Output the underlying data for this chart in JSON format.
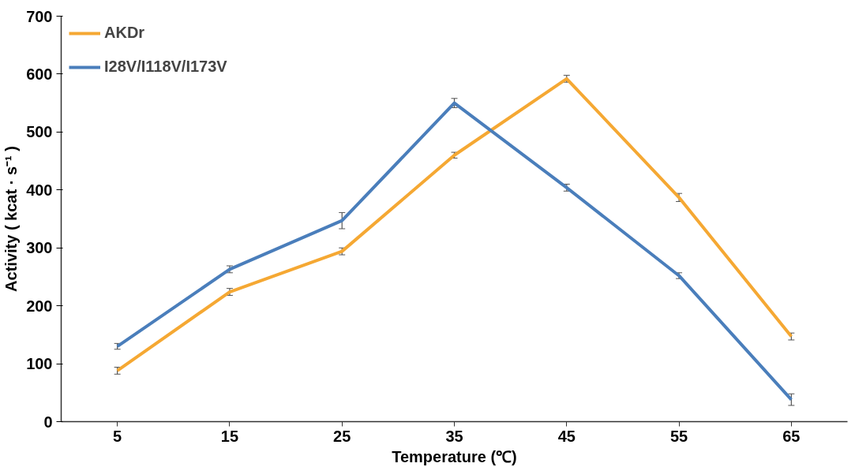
{
  "chart_data": {
    "type": "line",
    "xlabel": "Temperature (℃)",
    "ylabel": "Activity ( kcat · s⁻¹ )",
    "categories": [
      "5",
      "15",
      "25",
      "35",
      "45",
      "55",
      "65"
    ],
    "series": [
      {
        "name": "AKDr",
        "color": "#f5a833",
        "values": [
          88,
          224,
          294,
          460,
          592,
          387,
          147
        ],
        "errors": [
          6,
          6,
          6,
          5,
          6,
          7,
          6
        ]
      },
      {
        "name": "I28V/I118V/I173V",
        "color": "#4a7ebb",
        "values": [
          130,
          263,
          347,
          550,
          404,
          252,
          38
        ],
        "errors": [
          5,
          6,
          14,
          8,
          6,
          5,
          10
        ]
      }
    ],
    "ylim": [
      0,
      700
    ],
    "yticks": [
      0,
      100,
      200,
      300,
      400,
      500,
      600,
      700
    ],
    "grid": false,
    "legend": "top left",
    "marker": "none",
    "line_style": "solid"
  }
}
